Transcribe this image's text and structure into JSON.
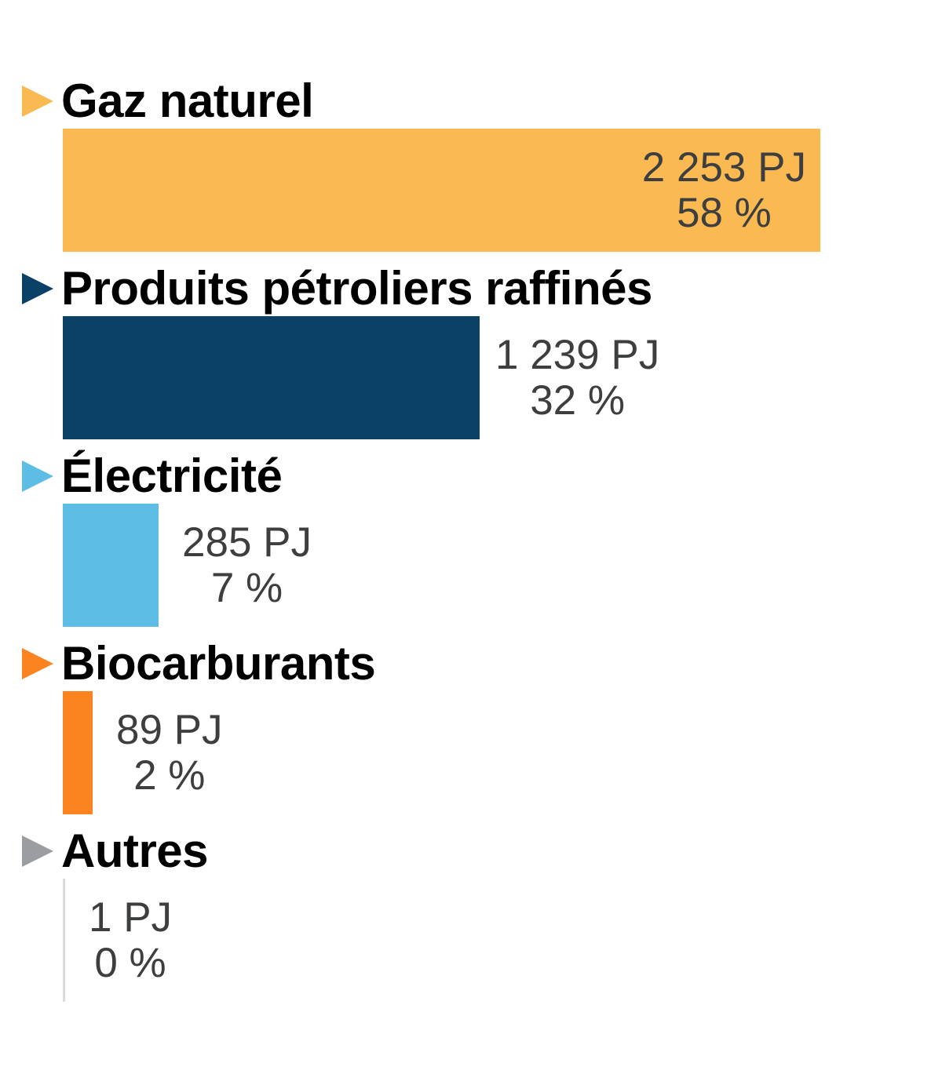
{
  "chart_data": {
    "type": "bar",
    "orientation": "horizontal",
    "unit": "PJ",
    "max_value_pj": 2253,
    "value_axis_hidden": true,
    "rows": [
      {
        "label": "Gaz naturel",
        "value_pj": 2253,
        "percent": 58,
        "value_label": "2 253 PJ",
        "pct_label": "58 %",
        "color": "#FBB952",
        "triangle_color": "#FBB952",
        "value_position": "inside"
      },
      {
        "label": "Produits pétroliers raffinés",
        "value_pj": 1239,
        "percent": 32,
        "value_label": "1 239 PJ",
        "pct_label": "32 %",
        "color": "#0B4167",
        "triangle_color": "#0B4167",
        "value_position": "outside"
      },
      {
        "label": "Électricité",
        "value_pj": 285,
        "percent": 7,
        "value_label": "285 PJ",
        "pct_label": "7 %",
        "color": "#5EBDE5",
        "triangle_color": "#5EBDE5",
        "value_position": "outside"
      },
      {
        "label": "Biocarburants",
        "value_pj": 89,
        "percent": 2,
        "value_label": "89 PJ",
        "pct_label": "2 %",
        "color": "#FB8420",
        "triangle_color": "#FB8420",
        "value_position": "outside"
      },
      {
        "label": "Autres",
        "value_pj": 1,
        "percent": 0,
        "value_label": "1 PJ",
        "pct_label": "0 %",
        "color": "#DCDCDC",
        "triangle_color": "#9B9EA1",
        "value_position": "outside"
      }
    ],
    "colors": {
      "label_text": "#000000",
      "value_text": "#3D3E3F",
      "background": "#FFFFFF"
    }
  }
}
